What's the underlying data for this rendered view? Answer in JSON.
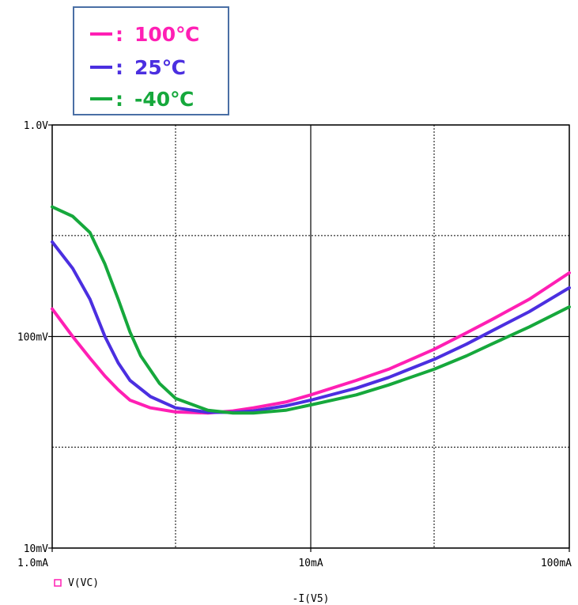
{
  "legend": {
    "entries": [
      {
        "label": "100℃",
        "color": "#ff1fb4"
      },
      {
        "label": "25℃",
        "color": "#4b2fe0"
      },
      {
        "label": "-40℃",
        "color": "#16a83c"
      }
    ],
    "separator": ":"
  },
  "chart_data": {
    "type": "line",
    "x_scale": "log",
    "y_scale": "log",
    "xlim": [
      0.001,
      0.1
    ],
    "ylim": [
      0.01,
      1.0
    ],
    "xlabel": "-I(V5)",
    "x_ticks": [
      {
        "value": 0.001,
        "label": "1.0mA"
      },
      {
        "value": 0.01,
        "label": "10mA"
      },
      {
        "value": 0.1,
        "label": "100mA"
      }
    ],
    "y_ticks": [
      {
        "value": 1.0,
        "label": "1.0V"
      },
      {
        "value": 0.1,
        "label": "100mV"
      },
      {
        "value": 0.01,
        "label": "10mV"
      }
    ],
    "minor_grid_x": [
      0.003,
      0.03
    ],
    "minor_grid_y": [
      0.3,
      0.03
    ],
    "trace_legend": {
      "marker": "square",
      "label": "V(VC)"
    },
    "series": [
      {
        "name": "100℃",
        "color": "#ff1fb4",
        "x": [
          0.001,
          0.0012,
          0.0014,
          0.0016,
          0.0018,
          0.002,
          0.0024,
          0.003,
          0.004,
          0.005,
          0.006,
          0.008,
          0.01,
          0.015,
          0.02,
          0.03,
          0.04,
          0.05,
          0.07,
          0.1
        ],
        "y": [
          0.135,
          0.1,
          0.079,
          0.065,
          0.056,
          0.05,
          0.046,
          0.044,
          0.0435,
          0.0445,
          0.046,
          0.049,
          0.053,
          0.062,
          0.07,
          0.087,
          0.104,
          0.12,
          0.15,
          0.2
        ]
      },
      {
        "name": "25℃",
        "color": "#4b2fe0",
        "x": [
          0.001,
          0.0012,
          0.0014,
          0.0016,
          0.0018,
          0.002,
          0.0024,
          0.003,
          0.004,
          0.005,
          0.006,
          0.008,
          0.01,
          0.015,
          0.02,
          0.03,
          0.04,
          0.05,
          0.07,
          0.1
        ],
        "y": [
          0.28,
          0.21,
          0.15,
          0.1,
          0.075,
          0.062,
          0.052,
          0.046,
          0.0438,
          0.0438,
          0.0445,
          0.047,
          0.05,
          0.057,
          0.064,
          0.078,
          0.092,
          0.106,
          0.131,
          0.17
        ]
      },
      {
        "name": "-40℃",
        "color": "#16a83c",
        "x": [
          0.001,
          0.0012,
          0.0014,
          0.0016,
          0.0018,
          0.002,
          0.0022,
          0.0026,
          0.003,
          0.004,
          0.005,
          0.006,
          0.008,
          0.01,
          0.015,
          0.02,
          0.03,
          0.04,
          0.05,
          0.07,
          0.1
        ],
        "y": [
          0.41,
          0.37,
          0.31,
          0.22,
          0.15,
          0.105,
          0.081,
          0.06,
          0.051,
          0.0448,
          0.0435,
          0.0435,
          0.0448,
          0.0475,
          0.053,
          0.059,
          0.07,
          0.081,
          0.092,
          0.111,
          0.138
        ]
      }
    ]
  }
}
